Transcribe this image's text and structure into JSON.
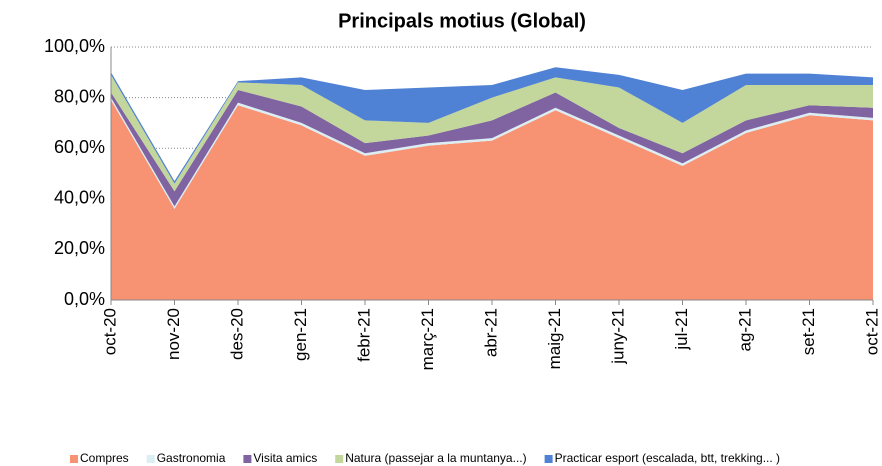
{
  "chart_data": {
    "type": "stacked_area",
    "title": "Principals motius (Global)",
    "categories": [
      "oct-20",
      "nov-20",
      "des-20",
      "gen-21",
      "febr-21",
      "març-21",
      "abr-21",
      "maig-21",
      "juny-21",
      "jul-21",
      "ag-21",
      "set-21",
      "oct-21"
    ],
    "series": [
      {
        "name": "Compres",
        "color": "#f79272",
        "values": [
          79,
          36,
          77,
          69,
          57,
          61,
          63,
          75,
          64,
          53,
          66,
          73,
          71
        ]
      },
      {
        "name": "Gastronomia",
        "color": "#dbeef4",
        "values": [
          1,
          1,
          1,
          1,
          1,
          1,
          1,
          1,
          1,
          1,
          1,
          1,
          1
        ]
      },
      {
        "name": "Visita amics",
        "color": "#8064a2",
        "values": [
          2,
          6,
          5,
          6.5,
          4,
          3,
          7,
          6,
          3,
          4,
          4,
          3,
          4
        ]
      },
      {
        "name": "Natura (passejar a la muntanya...)",
        "color": "#c3d69b",
        "values": [
          7,
          3,
          3,
          8.5,
          9,
          5,
          9,
          6,
          16,
          12,
          14,
          8,
          9
        ]
      },
      {
        "name": "Practicar esport (escalada, btt, trekking... )",
        "color": "#4f81d4",
        "values": [
          1,
          1,
          0.5,
          3,
          12,
          14,
          5,
          4,
          5,
          13,
          4.5,
          4.5,
          3
        ]
      }
    ],
    "ylim": [
      0,
      100
    ],
    "yticks": [
      {
        "value": 0,
        "label": "0,0%"
      },
      {
        "value": 20,
        "label": "20,0%"
      },
      {
        "value": 40,
        "label": "40,0%"
      },
      {
        "value": 60,
        "label": "60,0%"
      },
      {
        "value": 80,
        "label": "80,0%"
      },
      {
        "value": 100,
        "label": "100,0%"
      }
    ],
    "grid": true,
    "legend": "bottom"
  }
}
